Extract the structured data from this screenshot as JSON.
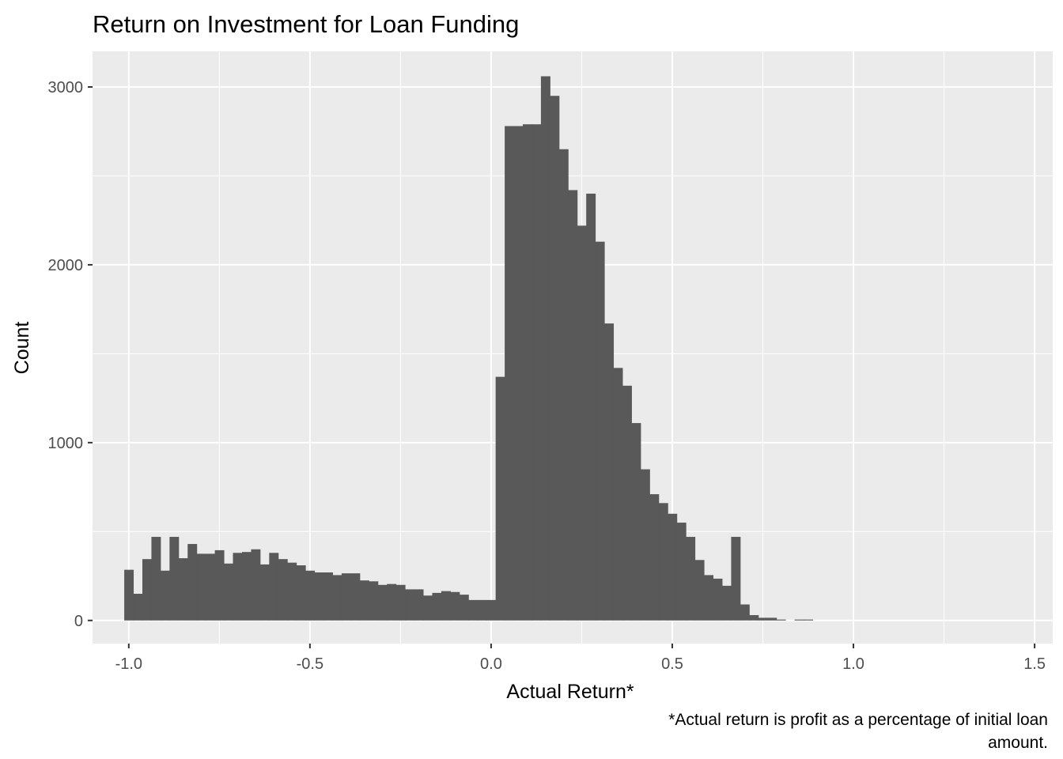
{
  "chart_data": {
    "type": "bar",
    "title": "Return on Investment for Loan Funding",
    "xlabel": "Actual Return*",
    "ylabel": "Count",
    "caption_lines": [
      "*Actual return is profit as a percentage of initial loan",
      "amount."
    ],
    "xlim": [
      -1.1,
      1.55
    ],
    "ylim": [
      -130,
      3200
    ],
    "xticks": [
      -1.0,
      -0.5,
      0.0,
      0.5,
      1.0,
      1.5
    ],
    "xtick_labels": [
      "-1.0",
      "-0.5",
      "0.0",
      "0.5",
      "1.0",
      "1.5"
    ],
    "yticks": [
      0,
      1000,
      2000,
      3000
    ],
    "ytick_labels": [
      "0",
      "1000",
      "2000",
      "3000"
    ],
    "grid": true,
    "bar_color": "#595959",
    "panel_color": "#ebebeb",
    "bin_width": 0.025,
    "bin_start": -1.0125,
    "values": [
      285,
      150,
      345,
      470,
      280,
      470,
      350,
      430,
      375,
      375,
      395,
      320,
      380,
      385,
      400,
      315,
      380,
      345,
      325,
      310,
      280,
      270,
      270,
      255,
      265,
      265,
      225,
      220,
      200,
      205,
      200,
      175,
      175,
      140,
      155,
      165,
      160,
      145,
      115,
      115,
      115,
      1370,
      2780,
      2780,
      2790,
      2790,
      3060,
      2950,
      2650,
      2420,
      2220,
      2400,
      2130,
      1670,
      1420,
      1320,
      1110,
      850,
      710,
      660,
      600,
      550,
      470,
      340,
      255,
      235,
      195,
      470,
      90,
      30,
      15,
      15,
      5,
      0,
      5,
      5
    ]
  }
}
